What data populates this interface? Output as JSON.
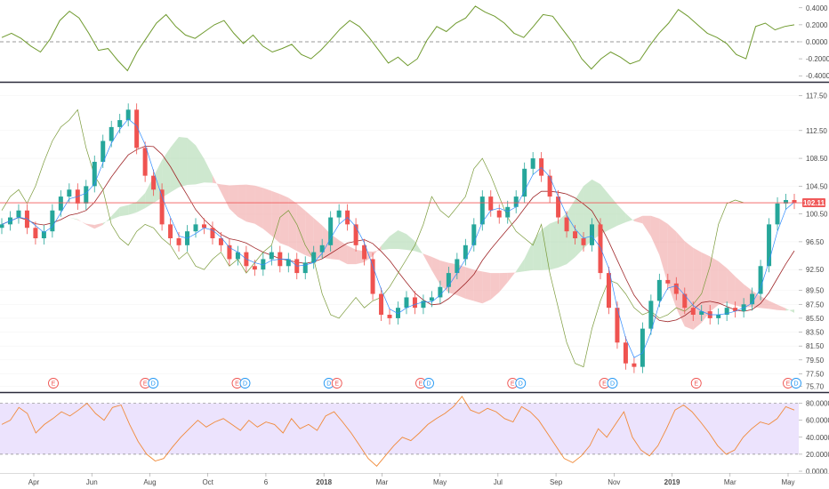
{
  "chart_data": [
    {
      "type": "line",
      "panel": "oscillator",
      "ylim": [
        -0.45,
        0.45
      ],
      "y_ticks": [
        "0.4000",
        "0.2000",
        "0.0000",
        "-0.2000",
        "-0.4000"
      ],
      "tick_values": [
        0.4,
        0.2,
        0.0,
        -0.2,
        -0.4
      ],
      "zero_line": "dashed",
      "colors": {
        "line": "#6f9a2e",
        "zero": "#777777"
      },
      "values": [
        0.05,
        0.1,
        0.04,
        -0.05,
        -0.12,
        0.03,
        0.25,
        0.36,
        0.28,
        0.1,
        -0.1,
        -0.08,
        -0.22,
        -0.34,
        -0.12,
        0.05,
        0.22,
        0.32,
        0.18,
        0.08,
        0.04,
        0.12,
        0.2,
        0.25,
        0.1,
        -0.02,
        0.08,
        -0.05,
        -0.12,
        -0.08,
        -0.03,
        -0.15,
        -0.2,
        -0.1,
        0.02,
        0.15,
        0.25,
        0.18,
        0.05,
        -0.1,
        -0.25,
        -0.18,
        -0.28,
        -0.2,
        0.02,
        0.18,
        0.12,
        0.22,
        0.28,
        0.42,
        0.35,
        0.3,
        0.22,
        0.1,
        0.05,
        0.18,
        0.32,
        0.3,
        0.15,
        0.0,
        -0.2,
        -0.32,
        -0.2,
        -0.12,
        -0.18,
        -0.26,
        -0.22,
        -0.05,
        0.1,
        0.22,
        0.38,
        0.3,
        0.2,
        0.1,
        0.05,
        -0.02,
        -0.15,
        -0.2,
        0.18,
        0.22,
        0.14,
        0.18,
        0.2
      ]
    },
    {
      "type": "candlestick",
      "panel": "price",
      "ylim": [
        75.0,
        119.0
      ],
      "y_ticks": [
        "117.50",
        "112.50",
        "108.50",
        "104.50",
        "100.50",
        "96.50",
        "92.50",
        "89.50",
        "87.50",
        "85.50",
        "83.50",
        "81.50",
        "79.50",
        "77.50",
        "75.70"
      ],
      "tick_values": [
        117.5,
        112.5,
        108.5,
        104.5,
        100.5,
        96.5,
        92.5,
        89.5,
        87.5,
        85.5,
        83.5,
        81.5,
        79.5,
        77.5,
        75.7
      ],
      "last_price": "102.11",
      "last_value": 102.11,
      "closes": [
        99,
        100,
        101,
        98.5,
        97,
        98,
        101,
        103,
        104,
        102,
        104.5,
        108,
        111,
        113,
        114,
        115.5,
        110,
        106,
        104,
        99,
        97,
        96,
        98,
        99,
        98.5,
        97,
        96,
        94,
        95,
        93,
        92.5,
        94,
        95,
        93,
        94,
        92,
        93.5,
        95,
        96,
        100,
        101,
        99,
        96,
        94,
        89,
        86,
        85.5,
        87,
        88.5,
        87,
        88,
        88.5,
        90,
        92,
        94,
        96,
        99,
        103,
        101,
        100,
        101.5,
        103,
        107,
        108.5,
        106,
        103,
        100,
        98,
        97,
        96,
        99,
        92,
        87,
        82,
        79,
        78.5,
        84,
        88,
        91,
        90.5,
        89,
        87,
        86,
        86.5,
        85.5,
        86,
        87,
        86.5,
        87.5,
        89,
        93,
        99,
        102,
        102.5,
        102.11
      ],
      "colors": {
        "up": "#26a69a",
        "down": "#ef5350",
        "price_line": "#f05a5a",
        "conversion": "#2e8bff",
        "base": "#a0282a",
        "lagging": "#7a9a3a",
        "cloud_bull": "#a5d6a7",
        "cloud_bear": "#ef9a9a"
      },
      "events": [
        {
          "labels": [
            "E"
          ]
        },
        {
          "labels": [
            "E",
            "D"
          ]
        },
        {
          "labels": [
            "E",
            "D"
          ]
        },
        {
          "labels": [
            "D",
            "E"
          ]
        },
        {
          "labels": [
            "E",
            "D"
          ]
        },
        {
          "labels": [
            "E",
            "D"
          ]
        },
        {
          "labels": [
            "E",
            "D"
          ]
        },
        {
          "labels": [
            "E"
          ]
        },
        {
          "labels": [
            "E",
            "D"
          ]
        }
      ]
    },
    {
      "type": "line",
      "panel": "rsi",
      "ylim": [
        0,
        90
      ],
      "y_ticks": [
        "80.0000",
        "60.0000",
        "40.0000",
        "20.0000",
        "0.0000"
      ],
      "tick_values": [
        80,
        60,
        40,
        20,
        0
      ],
      "band": [
        20,
        80
      ],
      "colors": {
        "line": "#f08a3a",
        "band": "#ece3fd"
      },
      "values": [
        55,
        60,
        75,
        68,
        45,
        55,
        62,
        70,
        65,
        72,
        80,
        68,
        60,
        75,
        78,
        55,
        35,
        20,
        12,
        15,
        28,
        40,
        50,
        60,
        52,
        58,
        62,
        55,
        48,
        60,
        52,
        58,
        55,
        45,
        62,
        50,
        55,
        48,
        65,
        70,
        58,
        45,
        30,
        15,
        6,
        18,
        30,
        40,
        36,
        45,
        55,
        62,
        68,
        76,
        88,
        72,
        68,
        74,
        70,
        62,
        58,
        76,
        70,
        60,
        45,
        30,
        15,
        10,
        18,
        30,
        50,
        40,
        55,
        70,
        40,
        25,
        18,
        30,
        50,
        72,
        78,
        70,
        58,
        45,
        30,
        20,
        25,
        40,
        50,
        58,
        55,
        62,
        76,
        72
      ]
    }
  ],
  "x_axis": {
    "labels": [
      "Apr",
      "Jun",
      "Aug",
      "Oct",
      "6",
      "2018",
      "Mar",
      "May",
      "Jul",
      "Sep",
      "Nov",
      "2019",
      "Mar",
      "May"
    ],
    "bold": [
      false,
      false,
      false,
      false,
      false,
      true,
      false,
      false,
      false,
      false,
      false,
      true,
      false,
      false
    ]
  }
}
